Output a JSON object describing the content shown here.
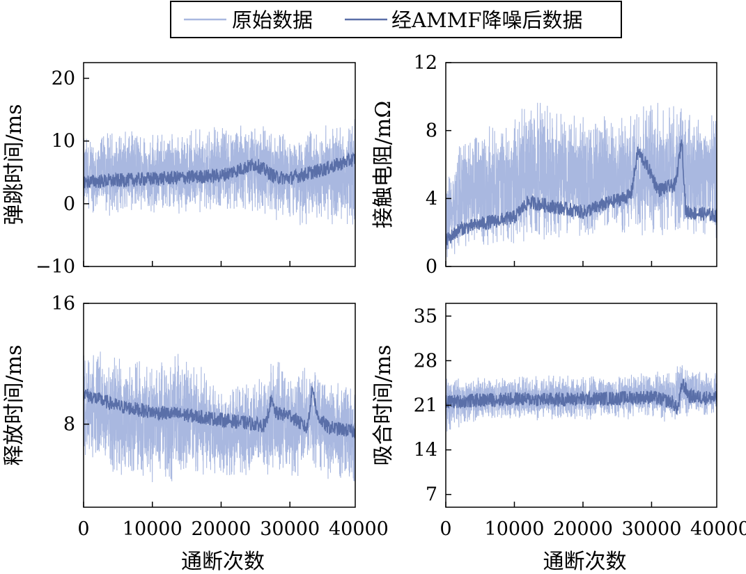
{
  "legend": {
    "items": [
      {
        "label": "原始数据",
        "color": "#a9b8e0"
      },
      {
        "label": "经AMMF降噪后数据",
        "color": "#5a6fa8"
      }
    ]
  },
  "chart_data": [
    {
      "type": "line",
      "panel": "top-left",
      "xlabel": "",
      "ylabel": "弹跳时间/ms",
      "xlim": [
        0,
        39500
      ],
      "ylim": [
        -10,
        22.5
      ],
      "yticks": [
        -10,
        0,
        10,
        20
      ],
      "xticks": [],
      "series": [
        {
          "name": "原始数据",
          "color": "#a9b8e0",
          "x": [
            0,
            5000,
            10000,
            15000,
            20000,
            25000,
            28000,
            30000,
            35000,
            39500
          ],
          "band_min": [
            -2,
            -2,
            -2,
            -2,
            -2,
            -2,
            -3,
            -4,
            -4,
            -4
          ],
          "band_max": [
            11,
            12,
            12,
            12,
            13,
            14,
            12,
            11,
            13,
            15
          ]
        },
        {
          "name": "经AMMF降噪后数据",
          "color": "#5a6fa8",
          "x": [
            0,
            5000,
            10000,
            15000,
            20000,
            25000,
            28000,
            30000,
            35000,
            39500
          ],
          "y": [
            3.5,
            3.7,
            4.0,
            4.2,
            4.5,
            6.3,
            4.2,
            4.1,
            5.5,
            7.2
          ]
        }
      ]
    },
    {
      "type": "line",
      "panel": "top-right",
      "xlabel": "",
      "ylabel": "接触电阻/mΩ",
      "xlim": [
        0,
        39500
      ],
      "ylim": [
        0,
        12
      ],
      "yticks": [
        0,
        4,
        8,
        12
      ],
      "xticks": [],
      "series": [
        {
          "name": "原始数据",
          "color": "#a9b8e0",
          "x": [
            0,
            2000,
            5000,
            10000,
            12000,
            20000,
            27000,
            28000,
            30000,
            33000,
            34500,
            35000,
            39500
          ],
          "band_min": [
            0.2,
            0.8,
            1.0,
            1.1,
            1.2,
            1.3,
            1.4,
            1.5,
            1.5,
            1.5,
            1.5,
            1.4,
            1.3
          ],
          "band_max": [
            5,
            8,
            8,
            9,
            10,
            9,
            9,
            10,
            10,
            10,
            10,
            9.5,
            9.5
          ]
        },
        {
          "name": "经AMMF降噪后数据",
          "color": "#5a6fa8",
          "x": [
            0,
            2000,
            5000,
            10000,
            12000,
            20000,
            27000,
            28000,
            29500,
            31000,
            33500,
            34400,
            35000,
            39500
          ],
          "y": [
            1.5,
            2.2,
            2.5,
            2.9,
            3.8,
            3.2,
            4.2,
            6.8,
            5.8,
            4.5,
            4.8,
            7.5,
            3.2,
            3.0
          ]
        }
      ]
    },
    {
      "type": "line",
      "panel": "bottom-left",
      "xlabel": "通断次数",
      "ylabel": "释放时间/ms",
      "xlim": [
        0,
        39500
      ],
      "ylim": [
        2.5,
        16
      ],
      "yticks": [
        8,
        16
      ],
      "xticks": [
        0,
        10000,
        20000,
        30000,
        40000
      ],
      "series": [
        {
          "name": "原始数据",
          "color": "#a9b8e0",
          "x": [
            0,
            5000,
            10000,
            15000,
            20000,
            25000,
            27000,
            30000,
            33000,
            35000,
            39500
          ],
          "band_min": [
            5.5,
            4.5,
            4.0,
            4.0,
            4.2,
            4.3,
            4.2,
            4.4,
            4.5,
            4.3,
            3.8
          ],
          "band_max": [
            13.5,
            12.5,
            12.5,
            13.0,
            11.0,
            11.0,
            13.0,
            11.5,
            12.5,
            11.5,
            11.0
          ]
        },
        {
          "name": "经AMMF降噪后数据",
          "color": "#5a6fa8",
          "x": [
            0,
            5000,
            10000,
            15000,
            20000,
            25000,
            26500,
            27200,
            28000,
            30000,
            32500,
            33300,
            34000,
            35500,
            39500
          ],
          "y": [
            10.0,
            9.2,
            8.8,
            8.6,
            8.3,
            8.0,
            7.9,
            9.6,
            8.7,
            8.6,
            7.7,
            10.5,
            8.5,
            7.8,
            7.5
          ]
        }
      ]
    },
    {
      "type": "line",
      "panel": "bottom-right",
      "xlabel": "通断次数",
      "ylabel": "吸合时间/ms",
      "xlim": [
        0,
        39500
      ],
      "ylim": [
        5,
        37
      ],
      "yticks": [
        7,
        14,
        21,
        28,
        35
      ],
      "xticks": [
        0,
        10000,
        20000,
        30000,
        40000
      ],
      "series": [
        {
          "name": "原始数据",
          "color": "#a9b8e0",
          "x": [
            0,
            5000,
            10000,
            15000,
            20000,
            25000,
            30000,
            33500,
            34500,
            35500,
            39500
          ],
          "band_min": [
            16.5,
            18.5,
            18.5,
            18.5,
            18.6,
            18.6,
            18.8,
            17.5,
            19.0,
            19.0,
            19.0
          ],
          "band_max": [
            26.0,
            25.5,
            25.7,
            25.8,
            26.0,
            26.2,
            26.5,
            27.0,
            28.5,
            27.0,
            26.5
          ]
        },
        {
          "name": "经AMMF降噪后数据",
          "color": "#5a6fa8",
          "x": [
            0,
            5000,
            10000,
            15000,
            20000,
            25000,
            30000,
            33000,
            33800,
            34500,
            35500,
            39500
          ],
          "y": [
            21.5,
            21.8,
            22.0,
            21.9,
            22.0,
            22.1,
            22.3,
            21.5,
            20.3,
            24.5,
            22.4,
            22.1
          ]
        }
      ]
    }
  ]
}
